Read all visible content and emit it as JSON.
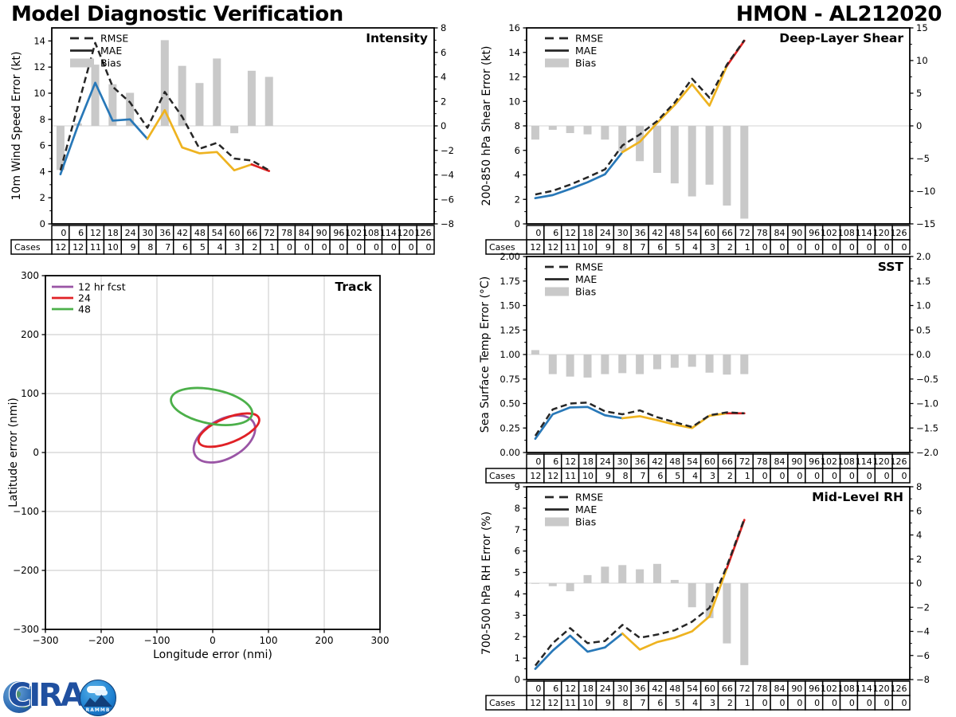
{
  "header": {
    "left_title": "Model Diagnostic Verification",
    "right_title": "HMON - AL212020"
  },
  "logo": {
    "cira": "CIRA",
    "rammb": "RAMMB"
  },
  "cases_label": "Cases",
  "hours": [
    0,
    6,
    12,
    18,
    24,
    30,
    36,
    42,
    48,
    54,
    60,
    66,
    72,
    78,
    84,
    90,
    96,
    102,
    108,
    114,
    120,
    126
  ],
  "cases": [
    12,
    12,
    11,
    10,
    9,
    8,
    7,
    6,
    5,
    4,
    3,
    2,
    1,
    0,
    0,
    0,
    0,
    0,
    0,
    0,
    0,
    0
  ],
  "colors": {
    "rmse": "#262626",
    "mae_blue": "#2878b8",
    "mae_yellow": "#eeb320",
    "mae_red": "#dd2121",
    "bias": "#c9c9c9",
    "zero_line": "#dcdcdc",
    "grid": "#d2d2d2",
    "purple": "#9a55a5",
    "track_red": "#e02126",
    "green": "#4cb04a",
    "axis": "#000000",
    "logo_blue": "#2050a0"
  },
  "chart_data": [
    {
      "id": "intensity",
      "type": "line",
      "title": "Intensity",
      "ylabel": "10m Wind Speed Error (kt)",
      "legend": [
        "RMSE",
        "MAE",
        "Bias"
      ],
      "x": [
        0,
        6,
        12,
        18,
        24,
        30,
        36,
        42,
        48,
        54,
        60,
        66,
        72
      ],
      "ylim": [
        0,
        15
      ],
      "yticks": [
        0,
        2,
        4,
        6,
        8,
        10,
        12,
        14
      ],
      "ytick_labels": [
        "0",
        "2",
        "4",
        "6",
        "8",
        "10",
        "12",
        "14"
      ],
      "right_ylim": [
        -8,
        8
      ],
      "right_ticks": [
        -8,
        -6,
        -4,
        -2,
        0,
        2,
        4,
        6,
        8
      ],
      "right_tick_labels": [
        "−8",
        "−6",
        "−4",
        "−2",
        "0",
        "2",
        "4",
        "6",
        "8"
      ],
      "series": {
        "rmse": [
          4.1,
          9.0,
          13.85,
          10.5,
          9.3,
          7.35,
          10.1,
          8.2,
          5.75,
          6.2,
          5.0,
          4.85,
          4.1
        ],
        "mae": [
          3.8,
          7.5,
          10.8,
          7.9,
          8.0,
          6.5,
          8.7,
          5.85,
          5.4,
          5.5,
          4.1,
          4.55,
          4.05
        ],
        "bias": [
          -3.6,
          0.2,
          5.0,
          3.4,
          2.7,
          0,
          7.0,
          4.9,
          3.5,
          5.5,
          -0.6,
          4.5,
          4.0
        ]
      }
    },
    {
      "id": "shear",
      "type": "line",
      "title": "Deep-Layer Shear",
      "ylabel": "200-850 hPa Shear Error (kt)",
      "legend": [
        "RMSE",
        "MAE",
        "Bias"
      ],
      "x": [
        0,
        6,
        12,
        18,
        24,
        30,
        36,
        42,
        48,
        54,
        60,
        66,
        72
      ],
      "ylim": [
        0,
        16
      ],
      "yticks": [
        0,
        2,
        4,
        6,
        8,
        10,
        12,
        14,
        16
      ],
      "ytick_labels": [
        "0",
        "2",
        "4",
        "6",
        "8",
        "10",
        "12",
        "14",
        "16"
      ],
      "right_ylim": [
        -15,
        15
      ],
      "right_ticks": [
        -15,
        -10,
        -5,
        0,
        5,
        10,
        15
      ],
      "right_tick_labels": [
        "−15",
        "−10",
        "−5",
        "0",
        "5",
        "10",
        "15"
      ],
      "series": {
        "rmse": [
          2.4,
          2.7,
          3.2,
          3.8,
          4.45,
          6.4,
          7.3,
          8.4,
          9.9,
          11.85,
          10.3,
          13.0,
          15.0
        ],
        "mae": [
          2.1,
          2.35,
          2.85,
          3.4,
          4.05,
          5.85,
          6.7,
          8.25,
          9.7,
          11.4,
          9.65,
          12.9,
          14.95
        ],
        "bias": [
          -2.1,
          -0.6,
          -1.1,
          -1.3,
          -2.1,
          -3.9,
          -5.4,
          -7.2,
          -8.8,
          -10.8,
          -9.0,
          -12.2,
          -14.2
        ]
      }
    },
    {
      "id": "sst",
      "type": "line",
      "title": "SST",
      "ylabel": "Sea Surface Temp Error (°C)",
      "legend": [
        "RMSE",
        "MAE",
        "Bias"
      ],
      "x": [
        0,
        6,
        12,
        18,
        24,
        30,
        36,
        42,
        48,
        54,
        60,
        66,
        72
      ],
      "ylim": [
        0,
        2
      ],
      "yticks": [
        0,
        0.25,
        0.5,
        0.75,
        1.0,
        1.25,
        1.5,
        1.75,
        2.0
      ],
      "ytick_labels": [
        "0.00",
        "0.25",
        "0.50",
        "0.75",
        "1.00",
        "1.25",
        "1.50",
        "1.75",
        "2.00"
      ],
      "right_ylim": [
        -2,
        2
      ],
      "right_ticks": [
        -2,
        -1.5,
        -1,
        -0.5,
        0,
        0.5,
        1,
        1.5,
        2
      ],
      "right_tick_labels": [
        "−2.0",
        "−1.5",
        "−1.0",
        "−0.5",
        "0.0",
        "0.5",
        "1.0",
        "1.5",
        "2.0"
      ],
      "series": {
        "rmse": [
          0.17,
          0.44,
          0.5,
          0.51,
          0.42,
          0.39,
          0.43,
          0.36,
          0.31,
          0.26,
          0.38,
          0.41,
          0.4
        ],
        "mae": [
          0.14,
          0.39,
          0.46,
          0.465,
          0.38,
          0.35,
          0.37,
          0.33,
          0.285,
          0.25,
          0.375,
          0.4,
          0.4
        ],
        "bias": [
          0.09,
          -0.4,
          -0.45,
          -0.47,
          -0.4,
          -0.38,
          -0.4,
          -0.3,
          -0.27,
          -0.25,
          -0.37,
          -0.41,
          -0.4
        ]
      }
    },
    {
      "id": "rh",
      "type": "line",
      "title": "Mid-Level RH",
      "ylabel": "700-500 hPa RH Error (%)",
      "legend": [
        "RMSE",
        "MAE",
        "Bias"
      ],
      "x": [
        0,
        6,
        12,
        18,
        24,
        30,
        36,
        42,
        48,
        54,
        60,
        66,
        72
      ],
      "ylim": [
        0,
        9
      ],
      "yticks": [
        0,
        1,
        2,
        3,
        4,
        5,
        6,
        7,
        8,
        9
      ],
      "ytick_labels": [
        "0",
        "1",
        "2",
        "3",
        "4",
        "5",
        "6",
        "7",
        "8",
        "9"
      ],
      "right_ylim": [
        -8,
        8
      ],
      "right_ticks": [
        -8,
        -6,
        -4,
        -2,
        0,
        2,
        4,
        6,
        8
      ],
      "right_tick_labels": [
        "−8",
        "−6",
        "−4",
        "−2",
        "0",
        "2",
        "4",
        "6",
        "8"
      ],
      "series": {
        "rmse": [
          0.65,
          1.7,
          2.4,
          1.7,
          1.8,
          2.55,
          1.95,
          2.1,
          2.3,
          2.7,
          3.35,
          5.3,
          7.5
        ],
        "mae": [
          0.5,
          1.35,
          2.05,
          1.3,
          1.5,
          2.15,
          1.4,
          1.75,
          1.95,
          2.25,
          2.95,
          5.2,
          7.45
        ],
        "bias": [
          -0.05,
          -0.25,
          -0.67,
          0.67,
          1.37,
          1.5,
          1.15,
          1.6,
          0.27,
          -2.0,
          -2.9,
          -5.0,
          -6.8
        ]
      }
    },
    {
      "id": "track",
      "type": "ellipse",
      "title": "Track",
      "xlabel": "Longitude error (nmi)",
      "ylabel": "Latitude error (nmi)",
      "xlim": [
        -300,
        300
      ],
      "ylim": [
        -300,
        300
      ],
      "xticks": [
        -300,
        -200,
        -100,
        0,
        100,
        200,
        300
      ],
      "xtick_labels": [
        "−300",
        "−200",
        "−100",
        "0",
        "100",
        "200",
        "300"
      ],
      "yticks": [
        -300,
        -200,
        -100,
        0,
        100,
        200,
        300
      ],
      "ytick_labels": [
        "−300",
        "−200",
        "−100",
        "0",
        "100",
        "200",
        "300"
      ],
      "legend": [
        {
          "label": "12 hr fcst",
          "color": "purple"
        },
        {
          "label": "24",
          "color": "track_red"
        },
        {
          "label": "48",
          "color": "green"
        }
      ],
      "ellipses": [
        {
          "name": "12 hr fcst",
          "color": "purple",
          "cx": 21,
          "cy": 23,
          "a": 60,
          "b": 33,
          "angle_deg": 29
        },
        {
          "name": "24",
          "color": "track_red",
          "cx": 29,
          "cy": 38,
          "a": 58,
          "b": 21,
          "angle_deg": 22
        },
        {
          "name": "48",
          "color": "green",
          "cx": -2,
          "cy": 78,
          "a": 74,
          "b": 29,
          "angle_deg": -11
        }
      ]
    }
  ]
}
